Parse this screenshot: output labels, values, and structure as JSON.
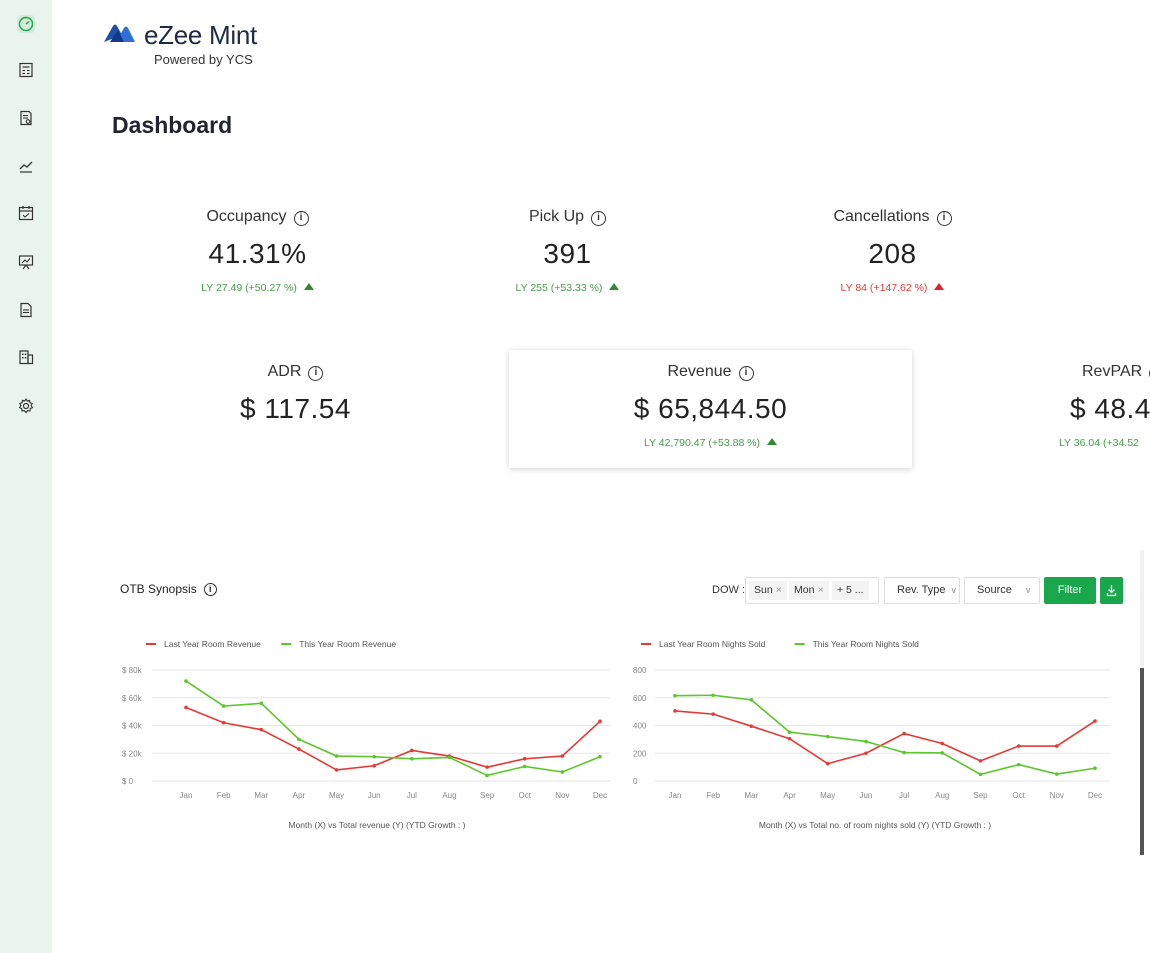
{
  "app": {
    "name": "eZee Mint",
    "subtitle": "Powered by YCS"
  },
  "sidebar": {
    "items": [
      {
        "name": "dashboard",
        "icon": "speedometer-icon",
        "active": true
      },
      {
        "name": "calculator",
        "icon": "calculator-icon"
      },
      {
        "name": "report",
        "icon": "receipt-icon"
      },
      {
        "name": "trends",
        "icon": "trend-chart-icon"
      },
      {
        "name": "calendar",
        "icon": "calendar-icon"
      },
      {
        "name": "presentation",
        "icon": "presentation-chart-icon"
      },
      {
        "name": "document",
        "icon": "document-icon"
      },
      {
        "name": "building",
        "icon": "building-icon"
      },
      {
        "name": "settings",
        "icon": "gear-icon"
      }
    ]
  },
  "page": {
    "title": "Dashboard"
  },
  "kpis": {
    "occupancy": {
      "label": "Occupancy",
      "value": "41.31%",
      "ly": "LY 27.49 (+50.27 %)",
      "trend": "up-green"
    },
    "pickup": {
      "label": "Pick Up",
      "value": "391",
      "ly": "LY 255 (+53.33 %)",
      "trend": "up-green"
    },
    "cancellations": {
      "label": "Cancellations",
      "value": "208",
      "ly": "LY 84 (+147.62 %)",
      "trend": "up-red"
    },
    "adr": {
      "label": "ADR",
      "value": "$ 117.54"
    },
    "revenue": {
      "label": "Revenue",
      "value": "$ 65,844.50",
      "ly": "LY 42,790.47 (+53.88 %)",
      "trend": "up-green"
    },
    "revpar": {
      "label": "RevPAR",
      "value": "$ 48.4",
      "ly": "LY 36.04 (+34.52"
    }
  },
  "otb": {
    "title": "OTB Synopsis",
    "dow_label": "DOW :",
    "dow_chips": [
      "Sun",
      "Mon",
      "+ 5 ..."
    ],
    "rev_type": "Rev. Type",
    "source": "Source",
    "filter": "Filter"
  },
  "colors": {
    "accent": "#1aa64b",
    "last_year": "#e53935",
    "this_year": "#5cc62c",
    "sidebar_bg": "#e9f5ec"
  },
  "chart_data": [
    {
      "type": "line",
      "categories": [
        "Jan",
        "Feb",
        "Mar",
        "Apr",
        "May",
        "Jun",
        "Jul",
        "Aug",
        "Sep",
        "Oct",
        "Nov",
        "Dec"
      ],
      "series": [
        {
          "name": "Last Year Room Revenue",
          "color": "#e53935",
          "values": [
            53000,
            42000,
            37000,
            23000,
            8000,
            11000,
            22000,
            18000,
            10000,
            16000,
            18000,
            43000
          ]
        },
        {
          "name": "This Year Room Revenue",
          "color": "#5cc62c",
          "values": [
            72000,
            54000,
            56000,
            30000,
            18000,
            17500,
            16000,
            17000,
            4000,
            10500,
            6500,
            17500
          ]
        }
      ],
      "ylim": [
        0,
        80000
      ],
      "yticks": [
        "$ 0",
        "$ 20k",
        "$ 40k",
        "$ 60k",
        "$ 80k"
      ],
      "caption": "Month (X) vs Total revenue (Y) (YTD Growth : )",
      "legend": "top-left",
      "grid": true
    },
    {
      "type": "line",
      "categories": [
        "Jan",
        "Feb",
        "Mar",
        "Apr",
        "May",
        "Jun",
        "Jul",
        "Aug",
        "Sep",
        "Oct",
        "Nov",
        "Dec"
      ],
      "series": [
        {
          "name": "Last Year Room Nights Sold",
          "color": "#e53935",
          "values": [
            505,
            482,
            395,
            305,
            125,
            200,
            342,
            270,
            145,
            252,
            252,
            432
          ]
        },
        {
          "name": "This Year Room Nights Sold",
          "color": "#5cc62c",
          "values": [
            615,
            618,
            585,
            352,
            320,
            285,
            205,
            202,
            48,
            118,
            50,
            92
          ]
        }
      ],
      "ylim": [
        0,
        800
      ],
      "yticks": [
        "0",
        "200",
        "400",
        "600",
        "800"
      ],
      "caption": "Month (X) vs Total no. of room nights sold (Y) (YTD Growth : )",
      "legend": "top-left",
      "grid": true
    }
  ]
}
